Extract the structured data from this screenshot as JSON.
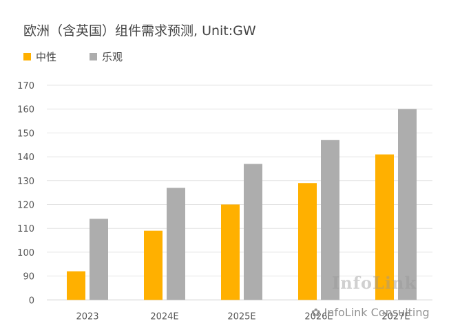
{
  "chart_data": {
    "type": "bar",
    "title": "欧洲（含英国）组件需求预测, Unit:GW",
    "categories": [
      "2023",
      "2024E",
      "2025E",
      "2026E",
      "2027E"
    ],
    "series": [
      {
        "name": "中性",
        "color": "#FFB000",
        "values": [
          92,
          109,
          120,
          129,
          141
        ]
      },
      {
        "name": "乐观",
        "color": "#ADADAD",
        "values": [
          114,
          127,
          137,
          147,
          160
        ]
      }
    ],
    "y_ticks": [
      0,
      90,
      100,
      110,
      120,
      130,
      140,
      150,
      160,
      170
    ],
    "y_axis_break": "0 to 90 (broken axis)",
    "ylim": [
      80,
      170
    ],
    "grid": true,
    "legend_position": "top-left"
  },
  "watermark": {
    "logo_text": "InfoLink",
    "credit_text": "InfoLink Consulting"
  }
}
